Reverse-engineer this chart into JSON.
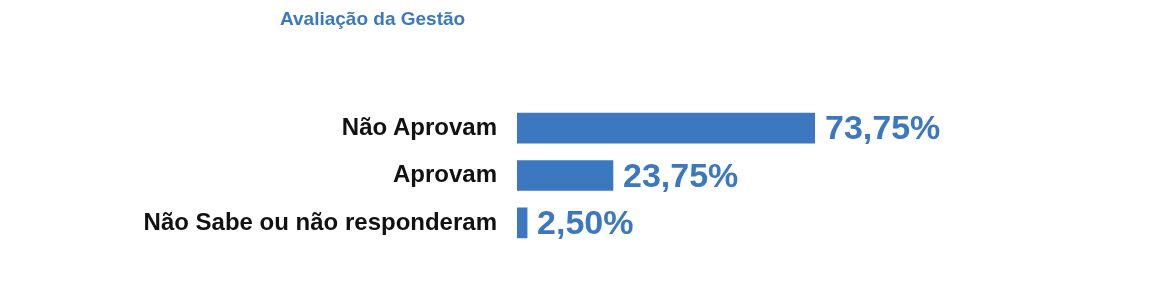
{
  "chart_data": {
    "type": "bar",
    "orientation": "horizontal",
    "title": "Avaliação da Gestão",
    "categories": [
      "Não Aprovam",
      "Aprovam",
      "Não Sabe ou não responderam"
    ],
    "values": [
      73.75,
      23.75,
      2.5
    ],
    "value_labels": [
      "73,75%",
      "23,75%",
      "2,50%"
    ],
    "color": "#3b78c0"
  }
}
